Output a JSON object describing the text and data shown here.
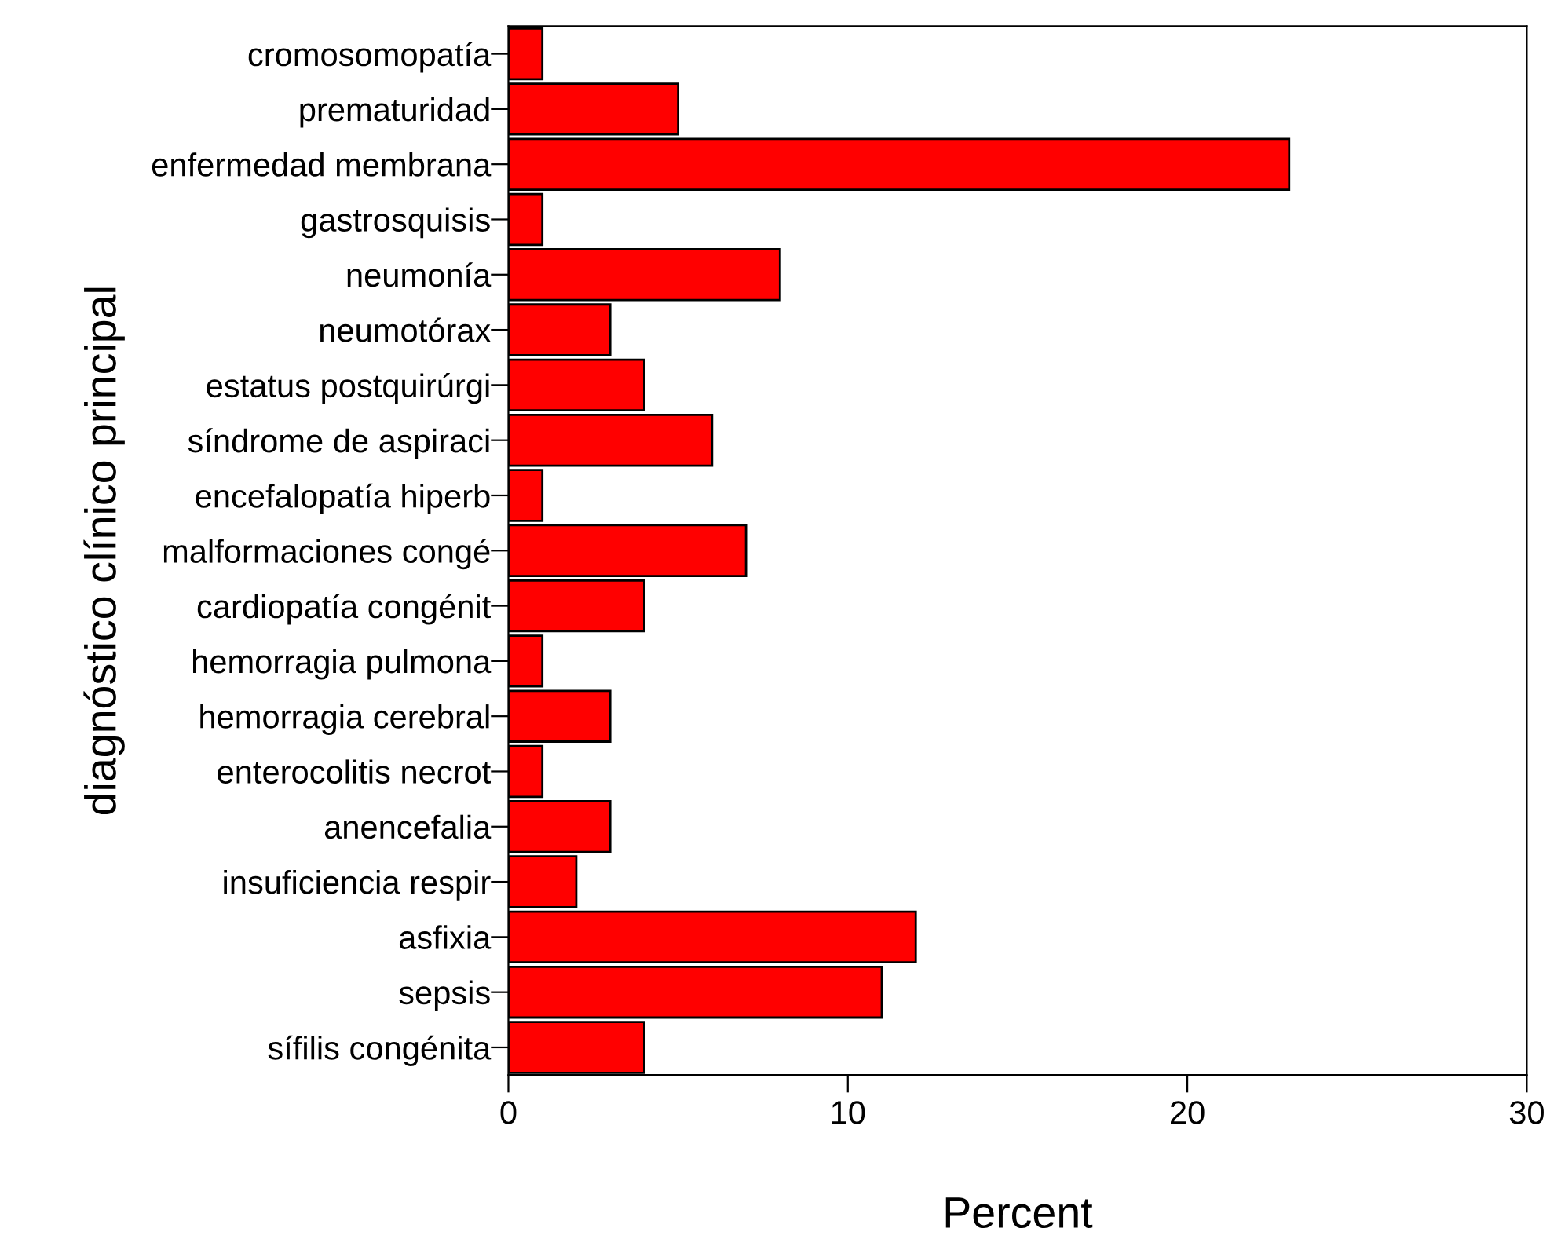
{
  "chart_data": {
    "type": "bar",
    "orientation": "horizontal",
    "xlabel": "Percent",
    "ylabel": "diagnóstico clínico principal",
    "categories": [
      "cromosomopatía",
      "prematuridad",
      "enfermedad membrana",
      "gastrosquisis",
      "neumonía",
      "neumotórax",
      "estatus postquirúrgi",
      "síndrome de aspiraci",
      "encefalopatía hiperb",
      "malformaciones congé",
      "cardiopatía congénit",
      "hemorragia pulmona",
      "hemorragia cerebral",
      "enterocolitis necrot",
      "anencefalia",
      "insuficiencia respir",
      "asfixia",
      "sepsis",
      "sífilis congénita"
    ],
    "values": [
      1,
      5,
      23,
      1,
      8,
      3,
      4,
      6,
      1,
      7,
      4,
      1,
      3,
      1,
      3,
      2,
      12,
      11,
      4
    ],
    "color": "#ff0000",
    "xlim": [
      0,
      30
    ],
    "xticks": [
      0,
      10,
      20,
      30
    ],
    "grid": false,
    "legend": false
  }
}
